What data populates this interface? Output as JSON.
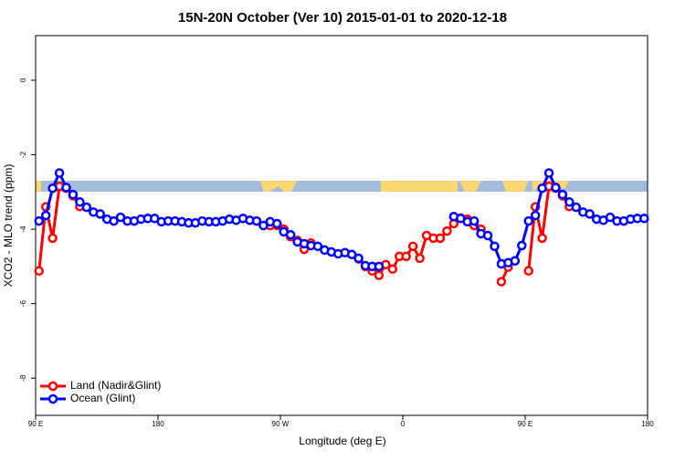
{
  "chart_data": {
    "type": "line",
    "title": "15N-20N October (Ver 10)   2015-01-01 to 2020-12-18",
    "xlabel": "Longitude (deg E)",
    "ylabel": "XCO2 - MLO trend (ppm)",
    "xlim": [
      90,
      540
    ],
    "ylim": [
      -9,
      1.2
    ],
    "xticks": [
      {
        "value": 90,
        "label": "90 E"
      },
      {
        "value": 180,
        "label": "180"
      },
      {
        "value": 270,
        "label": "90 W"
      },
      {
        "value": 360,
        "label": "0"
      },
      {
        "value": 450,
        "label": "90 E"
      },
      {
        "value": 540,
        "label": "180"
      }
    ],
    "yticks": [
      0,
      -2,
      -4,
      -6,
      -8
    ],
    "legend": "bottom-left",
    "x": [
      92.5,
      97.5,
      102.5,
      107.5,
      112.5,
      117.5,
      122.5,
      127.5,
      132.5,
      137.5,
      142.5,
      147.5,
      152.5,
      157.5,
      162.5,
      167.5,
      172.5,
      177.5,
      182.5,
      187.5,
      192.5,
      197.5,
      202.5,
      207.5,
      212.5,
      217.5,
      222.5,
      227.5,
      232.5,
      237.5,
      242.5,
      247.5,
      252.5,
      257.5,
      262.5,
      267.5,
      272.5,
      277.5,
      282.5,
      287.5,
      292.5,
      297.5,
      302.5,
      307.5,
      312.5,
      317.5,
      322.5,
      327.5,
      332.5,
      337.5,
      342.5,
      347.5,
      352.5,
      357.5,
      362.5,
      367.5,
      372.5,
      377.5,
      382.5,
      387.5,
      392.5,
      397.5,
      402.5,
      407.5,
      412.5,
      417.5,
      422.5,
      427.5,
      432.5,
      437.5,
      442.5,
      447.5,
      452.5,
      457.5,
      462.5,
      467.5,
      472.5,
      477.5,
      482.5,
      487.5,
      492.5,
      497.5,
      502.5,
      507.5,
      512.5,
      517.5,
      522.5,
      527.5,
      532.5,
      537.5
    ],
    "series": [
      {
        "name": "Land (Nadir&Glint)",
        "color": "#ff0000",
        "values": [
          -5.12,
          -3.4,
          -4.24,
          -2.85,
          -2.9,
          -3.1,
          -3.39,
          null,
          null,
          null,
          null,
          null,
          null,
          null,
          null,
          null,
          null,
          null,
          null,
          null,
          null,
          null,
          null,
          null,
          null,
          null,
          null,
          null,
          null,
          null,
          null,
          null,
          null,
          null,
          -3.9,
          -3.9,
          -4.0,
          -4.2,
          -4.3,
          -4.54,
          -4.37,
          null,
          null,
          null,
          null,
          null,
          null,
          -4.8,
          -5.0,
          -5.12,
          -5.24,
          -4.95,
          -5.07,
          -4.73,
          -4.73,
          -4.46,
          -4.78,
          -4.17,
          -4.24,
          -4.24,
          -4.05,
          -3.85,
          -3.7,
          -3.73,
          -3.9,
          -4.0,
          null,
          null,
          -5.41,
          -5.02,
          -4.85,
          null,
          -5.12,
          -3.4,
          -4.24,
          -2.85,
          -2.9,
          -3.1,
          -3.39,
          null,
          null,
          null,
          null,
          null,
          null,
          null,
          null,
          null,
          null,
          null
        ]
      },
      {
        "name": "Ocean (Glint)",
        "color": "#0000ff",
        "values": [
          -3.78,
          -3.63,
          -2.9,
          -2.49,
          -2.88,
          -3.07,
          -3.27,
          -3.41,
          -3.54,
          -3.59,
          -3.73,
          -3.78,
          -3.68,
          -3.78,
          -3.78,
          -3.73,
          -3.71,
          -3.71,
          -3.8,
          -3.78,
          -3.78,
          -3.8,
          -3.83,
          -3.83,
          -3.78,
          -3.8,
          -3.8,
          -3.78,
          -3.73,
          -3.76,
          -3.71,
          -3.76,
          -3.78,
          -3.9,
          -3.8,
          -3.85,
          -4.07,
          -4.15,
          -4.34,
          -4.39,
          -4.44,
          -4.46,
          -4.56,
          -4.61,
          -4.66,
          -4.63,
          -4.68,
          -4.78,
          -4.98,
          -5.0,
          -5.0,
          null,
          null,
          null,
          null,
          null,
          null,
          null,
          null,
          null,
          null,
          -3.66,
          -3.71,
          -3.8,
          -3.78,
          -4.12,
          -4.17,
          -4.46,
          -4.93,
          -4.9,
          -4.85,
          -4.44,
          -3.78,
          -3.63,
          -2.9,
          -2.49,
          -2.88,
          -3.07,
          -3.27,
          -3.41,
          -3.54,
          -3.59,
          -3.73,
          -3.76,
          -3.68,
          -3.78,
          -3.78,
          -3.73,
          -3.71,
          -3.71
        ]
      }
    ]
  }
}
